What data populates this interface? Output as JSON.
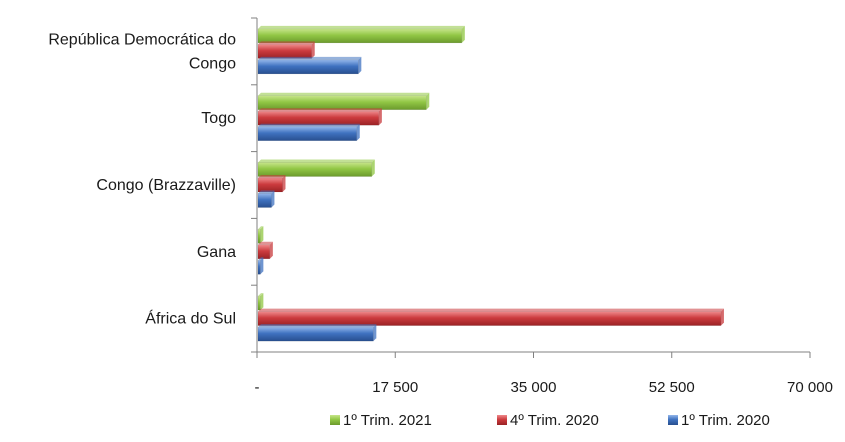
{
  "chart_data": {
    "type": "bar",
    "orientation": "horizontal",
    "categories": [
      [
        "República Democrática do",
        "Congo"
      ],
      [
        "Togo"
      ],
      [
        "Congo (Brazzaville)"
      ],
      [
        "Gana"
      ],
      [
        "África do Sul"
      ]
    ],
    "series": [
      {
        "name": "1º Trim. 2021",
        "color": "#8fc640",
        "values": [
          25800,
          21300,
          14400,
          300,
          300
        ]
      },
      {
        "name": "4º Trim. 2020",
        "color": "#c8393c",
        "values": [
          6800,
          15300,
          3100,
          1500,
          58600
        ]
      },
      {
        "name": "1º Trim. 2020",
        "color": "#3f72c0",
        "values": [
          12700,
          12500,
          1700,
          300,
          14600
        ]
      }
    ],
    "xlim": [
      0,
      70000
    ],
    "xticks": [
      0,
      17500,
      35000,
      52500,
      70000
    ],
    "xtick_labels": [
      "-",
      "17 500",
      "35 000",
      "52 500",
      "70 000"
    ],
    "legend_order": [
      0,
      1,
      2
    ],
    "legend_position": "bottom",
    "grid": false
  }
}
